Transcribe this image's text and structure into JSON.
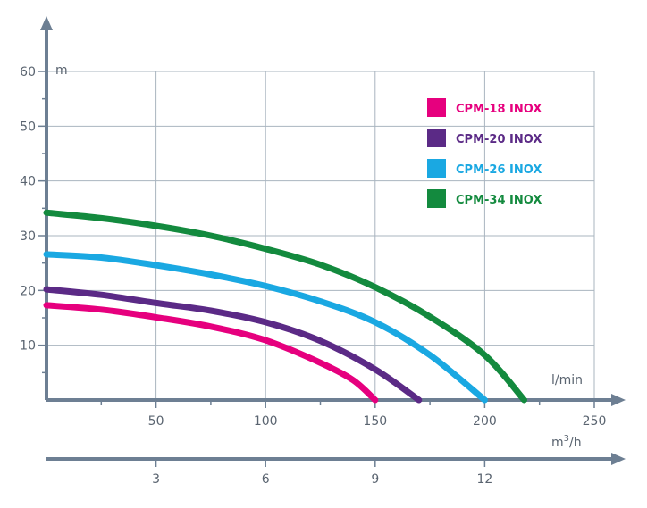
{
  "chart_data": {
    "type": "line",
    "title": "",
    "xlabel": "l/min",
    "ylabel": "m",
    "xlim": [
      0,
      250
    ],
    "ylim": [
      0,
      60
    ],
    "x_ticks": [
      "50",
      "100",
      "150",
      "200",
      "250"
    ],
    "y_ticks": [
      "10",
      "20",
      "30",
      "40",
      "50",
      "60"
    ],
    "secondary_x": {
      "label": "m³/h",
      "label_base": "m",
      "label_sup": "3",
      "label_suffix": "/h",
      "ticks": [
        {
          "label": "3",
          "value": 3
        },
        {
          "label": "6",
          "value": 6
        },
        {
          "label": "9",
          "value": 9
        },
        {
          "label": "12",
          "value": 12
        }
      ]
    },
    "grid": true,
    "legend_position": "top-right",
    "series": [
      {
        "name": "CPM-18 INOX",
        "color": "#e6007e",
        "points": [
          [
            0,
            17.3
          ],
          [
            25,
            16.5
          ],
          [
            50,
            15.1
          ],
          [
            75,
            13.4
          ],
          [
            100,
            10.9
          ],
          [
            125,
            6.8
          ],
          [
            140,
            3.6
          ],
          [
            150,
            0
          ]
        ]
      },
      {
        "name": "CPM-20 INOX",
        "color": "#5b2a86",
        "points": [
          [
            0,
            20.2
          ],
          [
            25,
            19.2
          ],
          [
            50,
            17.7
          ],
          [
            75,
            16.3
          ],
          [
            100,
            14.2
          ],
          [
            125,
            10.8
          ],
          [
            150,
            5.6
          ],
          [
            170,
            0
          ]
        ]
      },
      {
        "name": "CPM-26 INOX",
        "color": "#1aa8e2",
        "points": [
          [
            0,
            26.6
          ],
          [
            25,
            26.0
          ],
          [
            50,
            24.6
          ],
          [
            75,
            22.9
          ],
          [
            100,
            20.8
          ],
          [
            125,
            18.0
          ],
          [
            150,
            14.2
          ],
          [
            175,
            8.2
          ],
          [
            200,
            0
          ]
        ]
      },
      {
        "name": "CPM-34 INOX",
        "color": "#138a3e",
        "points": [
          [
            0,
            34.2
          ],
          [
            25,
            33.2
          ],
          [
            50,
            31.8
          ],
          [
            75,
            30.0
          ],
          [
            100,
            27.6
          ],
          [
            125,
            24.7
          ],
          [
            150,
            20.6
          ],
          [
            175,
            15.2
          ],
          [
            200,
            8.2
          ],
          [
            218,
            0
          ]
        ]
      }
    ]
  }
}
